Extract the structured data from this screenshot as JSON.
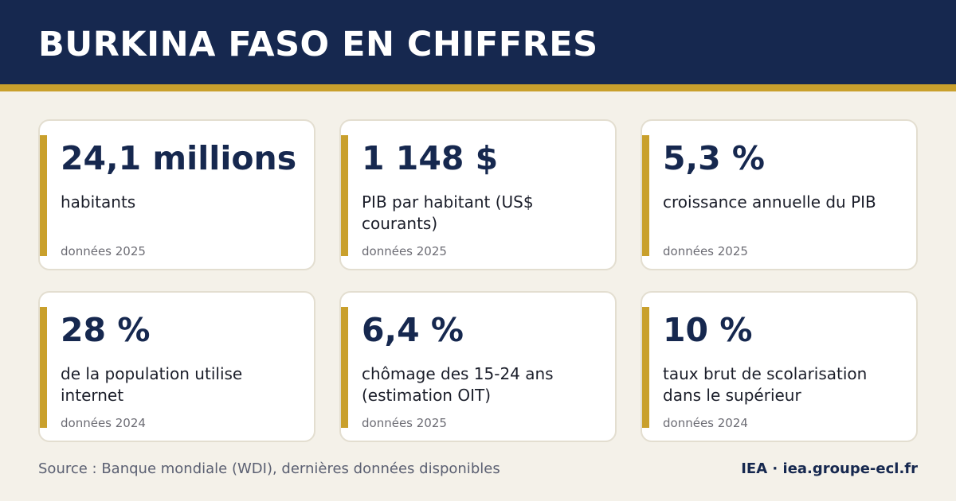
{
  "header": {
    "title": "BURKINA FASO EN CHIFFRES"
  },
  "colors": {
    "header_background": "#16284f",
    "accent_gold": "#c9a02c",
    "page_background": "#f4f1e9",
    "value_text": "#16284f"
  },
  "stats": [
    {
      "value": "24,1 millions",
      "label": "habitants",
      "year": "données 2025"
    },
    {
      "value": "1 148 $",
      "label": "PIB par habitant (US$ courants)",
      "year": "données 2025"
    },
    {
      "value": "5,3 %",
      "label": "croissance annuelle du PIB",
      "year": "données 2025"
    },
    {
      "value": "28 %",
      "label": "de la population utilise internet",
      "year": "données 2024"
    },
    {
      "value": "6,4 %",
      "label": "chômage des 15-24 ans (estimation OIT)",
      "year": "données 2025"
    },
    {
      "value": "10 %",
      "label": "taux brut de scolarisation dans le supérieur",
      "year": "données 2024"
    }
  ],
  "footer": {
    "source": "Source : Banque mondiale (WDI), dernières données disponibles",
    "brand": "IEA · iea.groupe-ecl.fr"
  }
}
